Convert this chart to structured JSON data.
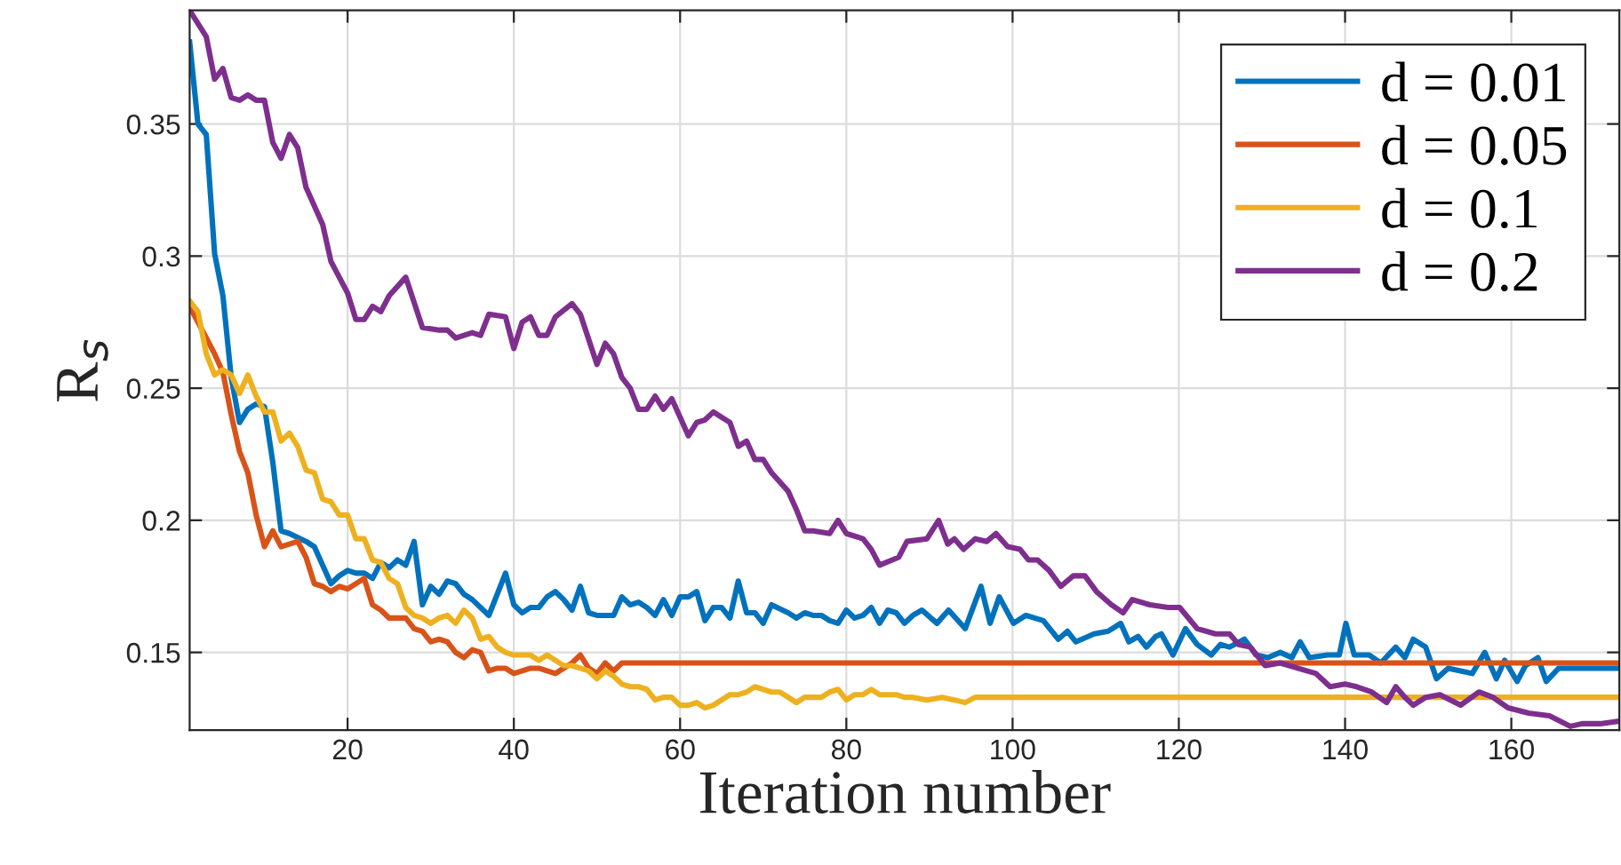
{
  "chart_data": {
    "type": "line",
    "xlabel": "Iteration number",
    "ylabel": "R$_{s}$",
    "xlim": [
      1,
      173
    ],
    "ylim": [
      0.1206,
      0.393
    ],
    "xticks": [
      20,
      40,
      60,
      80,
      100,
      120,
      140,
      160
    ],
    "yticks": [
      0.15,
      0.2,
      0.25,
      0.3,
      0.35
    ],
    "grid": true,
    "legend": "top right",
    "line_style": "solid",
    "marker": "none",
    "series": [
      {
        "name": "d = 0.01",
        "color": "#0072bd",
        "x": [
          1,
          2,
          3,
          4,
          5,
          6,
          7,
          8,
          9,
          10,
          11,
          12,
          13,
          15,
          16,
          17,
          18,
          19,
          20,
          21,
          22,
          23,
          24,
          25,
          26,
          27,
          28,
          29,
          30,
          31,
          32,
          33,
          34,
          35,
          37,
          39,
          40,
          41,
          42,
          43,
          44,
          45,
          46,
          47,
          48,
          49,
          50,
          52,
          53,
          54,
          55,
          56,
          57,
          58,
          59,
          60,
          61,
          62,
          63,
          64,
          65,
          66,
          67,
          68,
          69,
          70,
          71,
          73,
          74,
          75,
          76,
          77,
          78,
          79,
          80,
          81,
          82,
          83,
          84,
          85,
          86,
          87,
          88,
          89.1,
          90.9,
          92.3,
          94.3,
          96.2,
          97.3,
          98.4,
          100.1,
          101.6,
          103.7,
          105.5,
          106.6,
          107.6,
          109.8,
          111.5,
          113,
          114,
          115.1,
          116.1,
          117.2,
          117.9,
          119.3,
          120.8,
          122.2,
          123.9,
          125,
          126.1,
          127.9,
          129.3,
          130.7,
          132.2,
          133.6,
          134.6,
          135.7,
          137.9,
          139.3,
          140.1,
          141.1,
          142.9,
          144.3,
          146.1,
          147.2,
          148.2,
          149.7,
          151,
          152.4,
          153.9,
          155.3,
          156.8,
          158.2,
          159.2,
          160.7,
          161.7,
          163.2,
          164.2,
          165.7,
          173
        ],
        "values": [
          0.381,
          0.35,
          0.346,
          0.301,
          0.285,
          0.254,
          0.237,
          0.242,
          0.244,
          0.243,
          0.222,
          0.196,
          0.195,
          0.192,
          0.19,
          0.183,
          0.176,
          0.179,
          0.181,
          0.18,
          0.18,
          0.178,
          0.184,
          0.182,
          0.185,
          0.183,
          0.192,
          0.168,
          0.175,
          0.172,
          0.177,
          0.176,
          0.172,
          0.17,
          0.164,
          0.18,
          0.168,
          0.165,
          0.167,
          0.167,
          0.171,
          0.173,
          0.17,
          0.166,
          0.175,
          0.165,
          0.164,
          0.164,
          0.171,
          0.168,
          0.169,
          0.167,
          0.164,
          0.17,
          0.164,
          0.171,
          0.171,
          0.173,
          0.162,
          0.167,
          0.167,
          0.163,
          0.177,
          0.165,
          0.165,
          0.161,
          0.168,
          0.165,
          0.163,
          0.165,
          0.164,
          0.164,
          0.162,
          0.161,
          0.166,
          0.163,
          0.164,
          0.167,
          0.161,
          0.166,
          0.165,
          0.161,
          0.164,
          0.166,
          0.161,
          0.166,
          0.159,
          0.175,
          0.161,
          0.171,
          0.161,
          0.164,
          0.162,
          0.155,
          0.158,
          0.154,
          0.157,
          0.158,
          0.161,
          0.154,
          0.156,
          0.152,
          0.156,
          0.157,
          0.149,
          0.159,
          0.153,
          0.149,
          0.153,
          0.152,
          0.155,
          0.149,
          0.148,
          0.15,
          0.148,
          0.154,
          0.148,
          0.149,
          0.149,
          0.161,
          0.149,
          0.149,
          0.146,
          0.152,
          0.148,
          0.155,
          0.152,
          0.14,
          0.144,
          0.143,
          0.142,
          0.15,
          0.14,
          0.147,
          0.139,
          0.145,
          0.148,
          0.139,
          0.144,
          0.144
        ]
      },
      {
        "name": "d = 0.05",
        "color": "#d95319",
        "x": [
          1,
          2,
          4,
          5,
          6,
          7,
          8,
          9,
          10,
          11,
          12,
          13,
          14,
          15,
          16,
          17,
          18,
          19,
          20,
          21,
          22,
          23,
          24,
          25,
          26,
          27,
          28,
          29,
          30,
          31,
          32,
          33,
          34,
          35,
          36,
          37,
          38,
          39,
          40,
          41,
          42,
          43,
          44,
          45,
          46,
          47,
          48,
          49,
          50,
          51,
          52,
          53,
          173
        ],
        "values": [
          0.281,
          0.275,
          0.263,
          0.256,
          0.24,
          0.226,
          0.218,
          0.202,
          0.19,
          0.196,
          0.19,
          0.191,
          0.192,
          0.186,
          0.176,
          0.175,
          0.173,
          0.175,
          0.174,
          0.176,
          0.178,
          0.168,
          0.166,
          0.163,
          0.163,
          0.163,
          0.159,
          0.158,
          0.154,
          0.155,
          0.154,
          0.15,
          0.148,
          0.151,
          0.15,
          0.143,
          0.144,
          0.144,
          0.142,
          0.143,
          0.144,
          0.144,
          0.143,
          0.142,
          0.144,
          0.146,
          0.149,
          0.144,
          0.142,
          0.146,
          0.143,
          0.146,
          0.146
        ]
      },
      {
        "name": "d = 0.1",
        "color": "#edb120",
        "x": [
          1,
          2,
          3,
          4,
          5,
          6,
          7,
          8,
          9,
          10,
          11,
          12,
          13,
          14,
          15,
          16,
          17,
          18,
          19,
          20,
          21,
          22,
          23,
          24,
          25,
          26,
          27,
          28,
          29,
          30,
          31,
          32,
          33,
          34,
          35,
          36,
          37,
          38,
          39,
          40,
          41,
          42,
          43,
          44,
          45,
          46,
          47,
          48,
          49,
          50,
          51,
          52,
          53,
          54,
          55,
          56,
          57,
          58,
          59,
          60,
          61,
          62,
          63,
          64,
          65,
          66,
          67,
          68,
          69,
          70,
          71,
          72,
          73,
          74,
          75,
          76,
          77,
          78,
          79,
          80,
          81,
          82,
          83,
          84,
          85,
          86,
          87,
          88,
          89.7,
          91.5,
          93,
          94.3,
          95.5,
          173
        ],
        "values": [
          0.283,
          0.279,
          0.263,
          0.255,
          0.257,
          0.255,
          0.248,
          0.255,
          0.247,
          0.241,
          0.241,
          0.23,
          0.233,
          0.228,
          0.219,
          0.218,
          0.208,
          0.207,
          0.202,
          0.202,
          0.193,
          0.193,
          0.185,
          0.184,
          0.178,
          0.176,
          0.167,
          0.164,
          0.163,
          0.161,
          0.163,
          0.164,
          0.161,
          0.166,
          0.163,
          0.155,
          0.156,
          0.152,
          0.15,
          0.149,
          0.149,
          0.149,
          0.147,
          0.149,
          0.147,
          0.145,
          0.145,
          0.144,
          0.143,
          0.14,
          0.143,
          0.141,
          0.138,
          0.137,
          0.137,
          0.136,
          0.132,
          0.133,
          0.133,
          0.13,
          0.13,
          0.131,
          0.129,
          0.13,
          0.132,
          0.134,
          0.134,
          0.135,
          0.137,
          0.136,
          0.135,
          0.135,
          0.133,
          0.131,
          0.133,
          0.133,
          0.133,
          0.135,
          0.136,
          0.132,
          0.134,
          0.134,
          0.136,
          0.134,
          0.134,
          0.134,
          0.133,
          0.133,
          0.132,
          0.133,
          0.132,
          0.131,
          0.133,
          0.133
        ]
      },
      {
        "name": "d = 0.2",
        "color": "#7e2f8e",
        "x": [
          1,
          3,
          4,
          5,
          6,
          7,
          8,
          9,
          10,
          11,
          12,
          13,
          14,
          15,
          17,
          18,
          20,
          21,
          22,
          23,
          24,
          25,
          27,
          29,
          31,
          32,
          33,
          34,
          35,
          36,
          37,
          39,
          40,
          41,
          42,
          43,
          44,
          45,
          47,
          48,
          50,
          51,
          52,
          53,
          54,
          55,
          56,
          57,
          58,
          59,
          60,
          61,
          62,
          63,
          64,
          66,
          67,
          68,
          69,
          70,
          71,
          73,
          74,
          75,
          76,
          78,
          79,
          80,
          82,
          83,
          84,
          86.3,
          87.3,
          89.7,
          91.1,
          92.2,
          93,
          94.1,
          95.5,
          96.9,
          98,
          99.4,
          100.9,
          101.9,
          103,
          104.4,
          105.8,
          107.3,
          108.7,
          110.1,
          111.9,
          113.3,
          114.4,
          116.5,
          118.7,
          120.1,
          122.2,
          124.4,
          126.1,
          127.2,
          128.6,
          130.4,
          132.2,
          134.3,
          136.5,
          138.2,
          140,
          141.4,
          143.2,
          145,
          146.1,
          147.2,
          148.2,
          149.7,
          151.4,
          153.9,
          156.1,
          157.8,
          159.6,
          162.1,
          164.6,
          167.1,
          168.5,
          170.7,
          173
        ],
        "values": [
          0.393,
          0.383,
          0.367,
          0.371,
          0.36,
          0.359,
          0.361,
          0.359,
          0.359,
          0.343,
          0.337,
          0.346,
          0.341,
          0.326,
          0.312,
          0.298,
          0.286,
          0.276,
          0.276,
          0.281,
          0.279,
          0.285,
          0.292,
          0.273,
          0.272,
          0.272,
          0.269,
          0.27,
          0.271,
          0.27,
          0.278,
          0.277,
          0.265,
          0.275,
          0.277,
          0.27,
          0.27,
          0.277,
          0.282,
          0.278,
          0.259,
          0.267,
          0.263,
          0.254,
          0.25,
          0.242,
          0.242,
          0.247,
          0.242,
          0.246,
          0.239,
          0.232,
          0.237,
          0.238,
          0.241,
          0.237,
          0.228,
          0.23,
          0.223,
          0.223,
          0.218,
          0.211,
          0.204,
          0.196,
          0.196,
          0.195,
          0.2,
          0.195,
          0.193,
          0.189,
          0.183,
          0.186,
          0.192,
          0.193,
          0.2,
          0.191,
          0.193,
          0.189,
          0.193,
          0.192,
          0.195,
          0.19,
          0.189,
          0.185,
          0.185,
          0.181,
          0.175,
          0.179,
          0.179,
          0.173,
          0.168,
          0.165,
          0.17,
          0.168,
          0.167,
          0.167,
          0.159,
          0.157,
          0.157,
          0.153,
          0.152,
          0.145,
          0.146,
          0.144,
          0.142,
          0.137,
          0.138,
          0.137,
          0.135,
          0.131,
          0.137,
          0.133,
          0.13,
          0.133,
          0.134,
          0.13,
          0.135,
          0.133,
          0.129,
          0.127,
          0.126,
          0.122,
          0.123,
          0.123,
          0.124
        ]
      }
    ]
  }
}
